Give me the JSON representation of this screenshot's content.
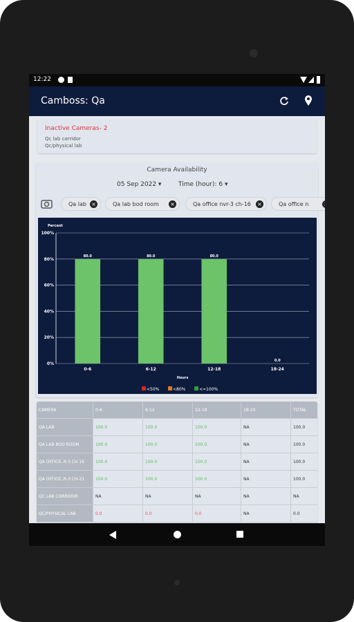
{
  "status_bar": {
    "time": "12:22"
  },
  "app_bar": {
    "title": "Camboss: Qa"
  },
  "inactive": {
    "title": "Inactive Cameras- 2",
    "items": [
      "Qc lab corridor",
      "Qc/physical lab"
    ]
  },
  "availability": {
    "title": "Camera Availability",
    "date": "05 Sep 2022",
    "time": "Time (hour): 6",
    "chips": [
      "Qa lab",
      "Qa lab bod room",
      "Qa office nvr-3 ch-16",
      "Qa office n"
    ]
  },
  "chart_data": {
    "type": "bar",
    "y_label": "Percent",
    "x_label": "Hours",
    "categories": [
      "0-6",
      "6-12",
      "12-18",
      "18-24"
    ],
    "values": [
      80,
      80,
      80,
      0
    ],
    "value_labels": [
      "80.0",
      "80.0",
      "80.0",
      "0.0"
    ],
    "color": "#6cc36a",
    "ylim": [
      0,
      100
    ],
    "yticks": [
      {
        "value": 0,
        "label": "0%"
      },
      {
        "value": 20,
        "label": "20%"
      },
      {
        "value": 40,
        "label": "40%"
      },
      {
        "value": 60,
        "label": "60%"
      },
      {
        "value": 80,
        "label": "80%"
      },
      {
        "value": 100,
        "label": "100%"
      }
    ],
    "grid": true,
    "legend": [
      {
        "name": "<50%",
        "color": "#d9232a"
      },
      {
        "name": "<80%",
        "color": "#e07b1f"
      },
      {
        "name": "<=100%",
        "color": "#2f9e3a"
      }
    ]
  },
  "table": {
    "header": [
      "CAMERA",
      "0-6",
      "6-12",
      "12-18",
      "18-24",
      "TOTAL"
    ],
    "rows": [
      {
        "cells": [
          "QA LAB",
          "100.0",
          "100.0",
          "100.0",
          "NA",
          "100.0"
        ],
        "highlight": "#5cb85c"
      },
      {
        "cells": [
          "QA LAB BOD ROOM",
          "100.0",
          "100.0",
          "100.0",
          "NA",
          "100.0"
        ],
        "highlight": "#5cb85c"
      },
      {
        "cells": [
          "QA OFFICE..R-3 CH 16",
          "100.0",
          "100.0",
          "100.0",
          "NA",
          "100.0"
        ],
        "highlight": "#5cb85c"
      },
      {
        "cells": [
          "QA OFFICE..R-3 CH-21",
          "100.0",
          "100.0",
          "100.0",
          "NA",
          "100.0"
        ],
        "highlight": "#5cb85c"
      },
      {
        "cells": [
          "QC LAB CORRIDOR",
          "NA",
          "NA",
          "NA",
          "NA",
          "NA"
        ],
        "highlight": "#333333"
      },
      {
        "cells": [
          "QC/PHYSICAL LAB",
          "0.0",
          "0.0",
          "0.0",
          "NA",
          "0.0"
        ],
        "highlight": "#e05050"
      }
    ]
  }
}
